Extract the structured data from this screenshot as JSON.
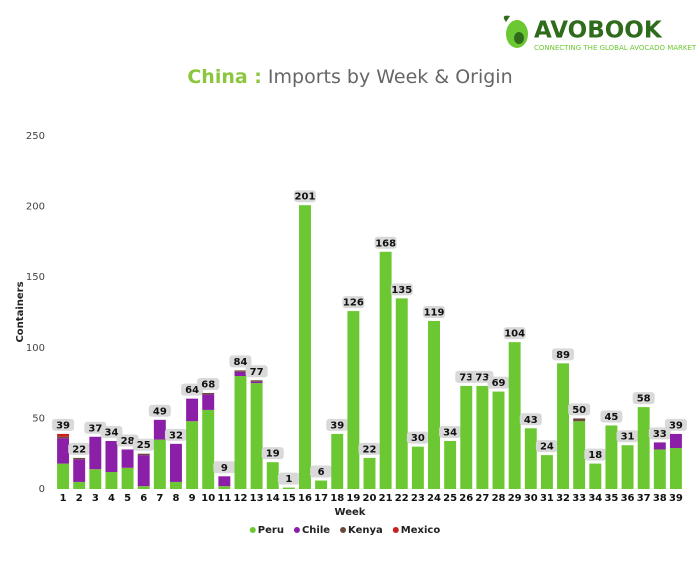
{
  "logo": {
    "name": "AVOBOOK",
    "tagline": "CONNECTING THE GLOBAL AVOCADO MARKET"
  },
  "chart_data": {
    "type": "stacked_bar",
    "title_highlight": "China :",
    "title": "Imports by Week & Origin",
    "x_label": "Week",
    "y_label": "Containers",
    "categories": [
      1,
      2,
      3,
      4,
      5,
      6,
      7,
      8,
      9,
      10,
      11,
      12,
      13,
      14,
      15,
      16,
      17,
      18,
      19,
      20,
      21,
      22,
      23,
      24,
      25,
      26,
      27,
      28,
      29,
      30,
      31,
      32,
      33,
      34,
      35,
      36,
      37,
      38,
      39
    ],
    "series": [
      {
        "name": "Peru",
        "color": "#6cc832",
        "values": [
          18,
          5,
          14,
          12,
          15,
          2,
          35,
          5,
          48,
          56,
          2,
          80,
          75,
          19,
          1,
          201,
          6,
          39,
          126,
          22,
          168,
          135,
          30,
          119,
          34,
          73,
          73,
          69,
          104,
          43,
          24,
          89,
          48,
          18,
          45,
          31,
          58,
          28,
          29
        ]
      },
      {
        "name": "Chile",
        "color": "#8c1fa8",
        "values": [
          18,
          16,
          23,
          22,
          13,
          22,
          14,
          27,
          16,
          11,
          7,
          3,
          1,
          0,
          0,
          0,
          0,
          0,
          0,
          0,
          0,
          0,
          0,
          0,
          0,
          0,
          0,
          0,
          0,
          0,
          0,
          0,
          0,
          0,
          0,
          0,
          0,
          5,
          10
        ]
      },
      {
        "name": "Kenya",
        "color": "#6b4a3a",
        "values": [
          1,
          1,
          0,
          0,
          0,
          1,
          0,
          0,
          0,
          1,
          0,
          1,
          1,
          0,
          0,
          0,
          0,
          0,
          0,
          0,
          0,
          0,
          0,
          0,
          0,
          0,
          0,
          0,
          0,
          0,
          0,
          0,
          2,
          0,
          0,
          0,
          0,
          0,
          0
        ]
      },
      {
        "name": "Mexico",
        "color": "#c8201f",
        "values": [
          2,
          0,
          0,
          0,
          0,
          0,
          0,
          0,
          0,
          0,
          0,
          0,
          0,
          0,
          0,
          0,
          0,
          0,
          0,
          0,
          0,
          0,
          0,
          0,
          0,
          0,
          0,
          0,
          0,
          0,
          0,
          0,
          0,
          0,
          0,
          0,
          0,
          0,
          0
        ]
      }
    ],
    "totals": [
      39,
      22,
      37,
      34,
      28,
      25,
      49,
      32,
      64,
      68,
      9,
      84,
      77,
      19,
      1,
      201,
      6,
      39,
      126,
      22,
      168,
      135,
      30,
      119,
      34,
      73,
      73,
      69,
      104,
      43,
      24,
      89,
      50,
      18,
      45,
      31,
      58,
      33,
      39
    ],
    "ylim": [
      0,
      250
    ],
    "yticks": [
      0,
      50,
      100,
      150,
      200,
      250
    ],
    "grid": false,
    "legend": "bottom"
  }
}
